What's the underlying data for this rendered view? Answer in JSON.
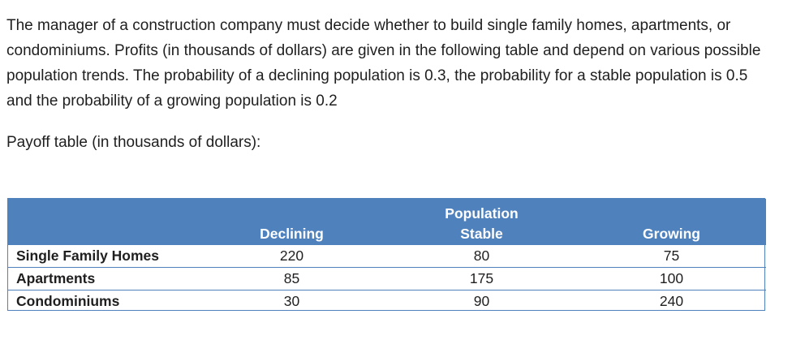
{
  "intro_text": "The manager of a construction company must decide whether to build single family homes, apartments, or condominiums. Profits (in thousands of dollars) are given in the following table and depend on various possible population trends. The probability of a declining population is 0.3, the probability for a stable population is 0.5 and the probability of a growing population is 0.2",
  "caption": "Payoff table (in thousands of dollars):",
  "table": {
    "group_header": "Population",
    "columns": [
      "Declining",
      "Stable",
      "Growing"
    ],
    "rows": [
      {
        "label": "Single Family Homes",
        "values": [
          "220",
          "80",
          "75"
        ]
      },
      {
        "label": "Apartments",
        "values": [
          "85",
          "175",
          "100"
        ]
      },
      {
        "label": "Condominiums",
        "values": [
          "30",
          "90",
          "240"
        ]
      }
    ],
    "header_color": "#4f81bd"
  }
}
